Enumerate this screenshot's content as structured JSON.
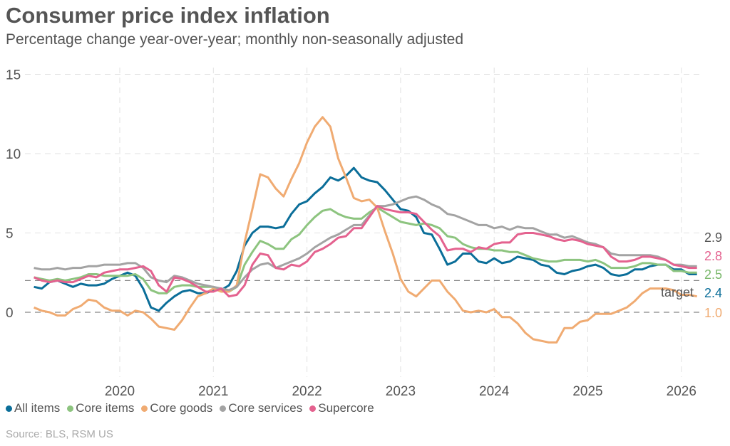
{
  "title": "Consumer price index inflation",
  "subtitle": "Percentage change year-over-year; monthly non-seasonally adjusted",
  "source": "Source: BLS, RSM US",
  "chart_data": {
    "type": "line",
    "title": "Consumer price index inflation",
    "xlabel": "",
    "ylabel": "",
    "ylim": [
      -4.5,
      15
    ],
    "yticks": [
      "0",
      "5",
      "10",
      "15"
    ],
    "xticks": [
      "2020",
      "2021",
      "2022",
      "2023",
      "2024",
      "2025",
      "2026"
    ],
    "grid": true,
    "legend": "bottom",
    "reference_line": {
      "value": 2,
      "label": "target"
    },
    "start": "2019-01",
    "series": [
      {
        "name": "All items",
        "color": "#0b6e99",
        "end_label": "2.4",
        "values": [
          1.6,
          1.5,
          1.9,
          2.0,
          1.8,
          1.6,
          1.8,
          1.7,
          1.7,
          1.8,
          2.1,
          2.3,
          2.5,
          2.3,
          1.5,
          0.3,
          0.1,
          0.6,
          1.0,
          1.3,
          1.4,
          1.2,
          1.2,
          1.4,
          1.4,
          1.7,
          2.6,
          4.2,
          5.0,
          5.4,
          5.4,
          5.3,
          5.4,
          6.2,
          6.8,
          7.0,
          7.5,
          7.9,
          8.5,
          8.3,
          8.6,
          9.1,
          8.5,
          8.3,
          8.2,
          7.7,
          7.1,
          6.5,
          6.4,
          6.0,
          5.0,
          4.9,
          4.0,
          3.0,
          3.2,
          3.7,
          3.7,
          3.2,
          3.1,
          3.4,
          3.1,
          3.2,
          3.5,
          3.4,
          3.3,
          3.0,
          2.9,
          2.5,
          2.4,
          2.6,
          2.7,
          2.9,
          3.0,
          2.8,
          2.4,
          2.3,
          2.4,
          2.7,
          2.7,
          2.9,
          3.0,
          3.0,
          2.7,
          2.7,
          2.4,
          2.4
        ]
      },
      {
        "name": "Core items",
        "color": "#8dc47f",
        "end_label": "2.5",
        "values": [
          2.2,
          2.1,
          2.0,
          2.1,
          2.0,
          2.1,
          2.2,
          2.4,
          2.4,
          2.3,
          2.3,
          2.3,
          2.3,
          2.4,
          2.1,
          1.4,
          1.2,
          1.2,
          1.6,
          1.7,
          1.7,
          1.6,
          1.6,
          1.6,
          1.4,
          1.3,
          1.6,
          3.0,
          3.8,
          4.5,
          4.3,
          4.0,
          4.0,
          4.6,
          4.9,
          5.5,
          6.0,
          6.4,
          6.5,
          6.2,
          6.0,
          5.9,
          5.9,
          6.3,
          6.6,
          6.3,
          6.0,
          5.7,
          5.6,
          5.5,
          5.6,
          5.5,
          5.3,
          4.8,
          4.7,
          4.3,
          4.1,
          4.0,
          4.0,
          3.9,
          3.9,
          3.8,
          3.8,
          3.6,
          3.4,
          3.3,
          3.2,
          3.2,
          3.3,
          3.3,
          3.3,
          3.2,
          3.3,
          3.1,
          2.8,
          2.8,
          2.8,
          2.9,
          3.1,
          3.1,
          3.0,
          3.0,
          2.6,
          2.6,
          2.5,
          2.5
        ]
      },
      {
        "name": "Core goods",
        "color": "#f0ab72",
        "end_label": "1.0",
        "values": [
          0.3,
          0.1,
          0.0,
          -0.2,
          -0.2,
          0.2,
          0.4,
          0.8,
          0.7,
          0.3,
          0.1,
          0.1,
          -0.2,
          0.1,
          0.0,
          -0.4,
          -0.9,
          -1.0,
          -1.1,
          -0.5,
          0.3,
          1.0,
          1.2,
          1.5,
          1.3,
          1.3,
          1.7,
          4.4,
          6.5,
          8.7,
          8.5,
          7.8,
          7.3,
          8.4,
          9.4,
          10.7,
          11.7,
          12.3,
          11.7,
          9.7,
          8.5,
          7.2,
          7.0,
          7.1,
          6.6,
          5.1,
          3.7,
          2.1,
          1.3,
          1.0,
          1.5,
          2.0,
          2.0,
          1.3,
          0.8,
          0.1,
          0.0,
          0.1,
          0.0,
          0.2,
          -0.3,
          -0.3,
          -0.7,
          -1.3,
          -1.7,
          -1.8,
          -1.9,
          -1.9,
          -1.0,
          -1.0,
          -0.6,
          -0.5,
          -0.1,
          -0.1,
          -0.1,
          0.1,
          0.3,
          0.7,
          1.2,
          1.5,
          1.5,
          1.5,
          1.4,
          1.1,
          1.1,
          1.0
        ]
      },
      {
        "name": "Core services",
        "color": "#a3a3a3",
        "end_label": "2.9",
        "values": [
          2.8,
          2.7,
          2.7,
          2.8,
          2.7,
          2.8,
          2.8,
          2.9,
          2.9,
          3.0,
          3.0,
          3.0,
          3.1,
          3.1,
          2.8,
          2.2,
          2.0,
          1.9,
          2.3,
          2.2,
          2.0,
          1.8,
          1.7,
          1.6,
          1.5,
          1.4,
          1.6,
          2.2,
          2.7,
          3.0,
          3.1,
          2.8,
          3.0,
          3.2,
          3.4,
          3.7,
          4.1,
          4.4,
          4.7,
          4.9,
          5.2,
          5.5,
          5.5,
          6.1,
          6.7,
          6.7,
          6.8,
          7.0,
          7.2,
          7.3,
          7.1,
          6.8,
          6.6,
          6.2,
          6.1,
          5.9,
          5.7,
          5.5,
          5.5,
          5.3,
          5.4,
          5.2,
          5.4,
          5.3,
          5.3,
          5.1,
          4.9,
          4.9,
          4.7,
          4.8,
          4.6,
          4.4,
          4.3,
          4.1,
          3.7,
          3.6,
          3.6,
          3.6,
          3.6,
          3.6,
          3.5,
          3.3,
          3.0,
          3.0,
          2.9,
          2.9
        ]
      },
      {
        "name": "Supercore",
        "color": "#e4628f",
        "end_label": "2.8",
        "values": [
          2.2,
          2.0,
          1.9,
          2.0,
          1.9,
          1.9,
          2.1,
          2.3,
          2.2,
          2.5,
          2.6,
          2.7,
          2.7,
          2.8,
          2.9,
          2.6,
          1.7,
          1.3,
          2.2,
          2.1,
          1.9,
          1.6,
          1.3,
          1.3,
          1.5,
          1.0,
          1.1,
          1.7,
          3.0,
          3.7,
          3.6,
          2.8,
          2.7,
          3.0,
          2.9,
          3.2,
          3.8,
          4.0,
          4.3,
          4.7,
          4.8,
          5.3,
          5.3,
          6.0,
          6.7,
          6.5,
          6.4,
          6.3,
          6.3,
          6.2,
          5.7,
          5.2,
          4.8,
          3.9,
          4.0,
          4.0,
          3.8,
          4.1,
          4.0,
          4.3,
          4.4,
          4.4,
          4.9,
          5.0,
          5.0,
          4.9,
          4.8,
          4.6,
          4.5,
          4.6,
          4.5,
          4.3,
          4.2,
          4.1,
          3.5,
          3.2,
          3.2,
          3.3,
          3.5,
          3.5,
          3.4,
          3.3,
          3.0,
          2.9,
          2.8,
          2.8
        ]
      }
    ]
  }
}
